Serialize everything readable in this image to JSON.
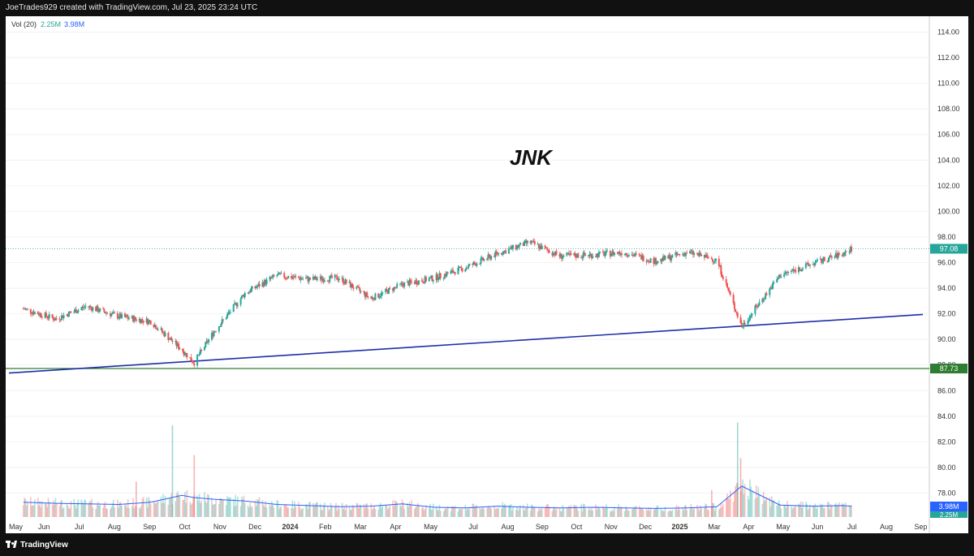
{
  "header": {
    "caption": "JoeTrades929 created with TradingView.com, Jul 23, 2025 23:24 UTC"
  },
  "indicator": {
    "name": "Vol (20)",
    "volume": "2.25M",
    "ma": "3.98M"
  },
  "footer": {
    "brand": "TradingView"
  },
  "colors": {
    "up": "#26a69a",
    "down": "#ef5350",
    "trendline": "#1e2fa8",
    "support": "#2e7d32",
    "vol_ma": "#2962ff"
  },
  "chart_data": {
    "type": "candlestick",
    "title": "JNK",
    "y_axis": {
      "ylim": [
        75.5,
        114.6
      ],
      "ticks": [
        "114.00",
        "112.00",
        "110.00",
        "108.00",
        "106.00",
        "104.00",
        "102.00",
        "100.00",
        "98.00",
        "96.00",
        "94.00",
        "92.00",
        "90.00",
        "88.00",
        "86.00",
        "84.00",
        "82.00",
        "80.00",
        "78.00"
      ]
    },
    "x_axis": {
      "ticks": [
        "May",
        "Jun",
        "Jul",
        "Aug",
        "Sep",
        "Oct",
        "Nov",
        "Dec",
        "2024",
        "Feb",
        "Mar",
        "Apr",
        "May",
        "Jul",
        "Aug",
        "Sep",
        "Oct",
        "Nov",
        "Dec",
        "2025",
        "Mar",
        "Apr",
        "May",
        "Jun",
        "Jul",
        "Aug",
        "Sep"
      ],
      "bold_ticks": [
        "2024",
        "2025"
      ]
    },
    "price_path": {
      "months": [
        "2023-05",
        "2023-06",
        "2023-07",
        "2023-08",
        "2023-09",
        "2023-10",
        "2023-10-27",
        "2023-11",
        "2023-12",
        "2024-01",
        "2024-02",
        "2024-03",
        "2024-04",
        "2024-05",
        "2024-06",
        "2024-07",
        "2024-08",
        "2024-09",
        "2024-10",
        "2024-11",
        "2024-12",
        "2025-01",
        "2025-02",
        "2025-03",
        "2025-04-08",
        "2025-05",
        "2025-06",
        "2025-07",
        "2025-07-23"
      ],
      "close": [
        92.4,
        91.6,
        92.6,
        91.8,
        91.4,
        89.2,
        88.2,
        90.6,
        93.6,
        95.0,
        94.7,
        94.8,
        93.2,
        94.3,
        94.8,
        95.6,
        96.7,
        97.6,
        96.5,
        96.6,
        96.8,
        96.1,
        96.8,
        96.2,
        91.0,
        95.0,
        95.9,
        96.7,
        97.08
      ]
    },
    "volume_ma_path": [
      2.6,
      2.4,
      2.3,
      2.2,
      2.6,
      3.8,
      3.4,
      3.1,
      2.8,
      2.2,
      2.0,
      1.8,
      1.9,
      2.3,
      1.7,
      1.6,
      1.9,
      1.7,
      1.6,
      1.7,
      1.6,
      1.5,
      1.6,
      1.8,
      5.4,
      2.1,
      1.9,
      2.0,
      1.9
    ],
    "volume_spikes": [
      {
        "date": "2023-10-06",
        "volume_m": 16.0,
        "direction": "up"
      },
      {
        "date": "2023-10-27",
        "volume_m": 10.8,
        "direction": "down"
      },
      {
        "date": "2023-09-01",
        "volume_m": 6.2,
        "direction": "down"
      },
      {
        "date": "2025-04-04",
        "volume_m": 16.5,
        "direction": "up"
      },
      {
        "date": "2025-04-07",
        "volume_m": 10.3,
        "direction": "down"
      },
      {
        "date": "2025-03-10",
        "volume_m": 4.7,
        "direction": "down"
      }
    ],
    "annotations": {
      "last_price": "97.08",
      "support_level": "87.73",
      "trendline": {
        "from": {
          "date": "2023-05-01",
          "price": 87.38
        },
        "to": {
          "date": "2025-09-30",
          "price": 91.95
        }
      },
      "vol_labels": [
        "3.98M",
        "2.25M"
      ]
    },
    "grid": true
  }
}
